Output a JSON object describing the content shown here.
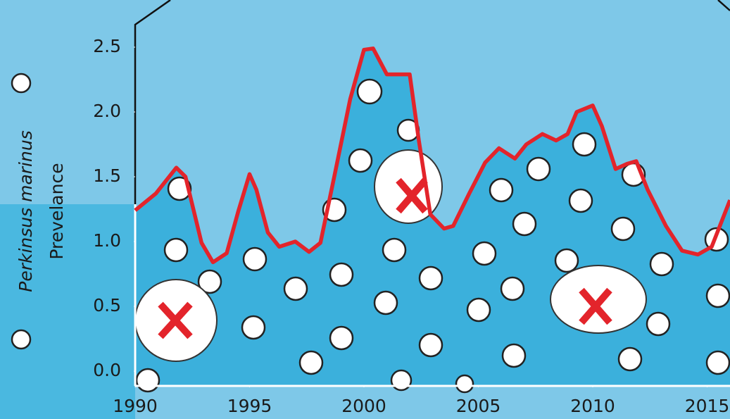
{
  "chart_data": {
    "type": "line",
    "y_label": "Prevelance",
    "y_label_species": "Perkinsus marinus",
    "x": [
      1990,
      1990.9,
      1991.8,
      1992.2,
      1992.9,
      1993.4,
      1994,
      1994.5,
      1995,
      1995.3,
      1995.8,
      1996.3,
      1997,
      1997.6,
      1998.1,
      1998.7,
      1999.4,
      2000,
      2000.4,
      2001,
      2001.5,
      2002,
      2002.4,
      2002.9,
      2003.5,
      2003.9,
      2004.6,
      2005.3,
      2005.9,
      2006.6,
      2007.1,
      2007.8,
      2008.4,
      2008.9,
      2009.3,
      2010,
      2010.4,
      2011,
      2011.5,
      2011.9,
      2012.4,
      2013.2,
      2013.9,
      2014.6,
      2015.2,
      2016
    ],
    "series": [
      {
        "color": "#e3242b",
        "values": [
          1.24,
          1.37,
          1.57,
          1.5,
          0.99,
          0.84,
          0.91,
          1.23,
          1.52,
          1.4,
          1.07,
          0.96,
          1.0,
          0.92,
          0.99,
          1.5,
          2.1,
          2.48,
          2.49,
          2.29,
          2.29,
          2.29,
          1.78,
          1.21,
          1.1,
          1.12,
          1.37,
          1.61,
          1.72,
          1.64,
          1.75,
          1.83,
          1.78,
          1.83,
          2.0,
          2.05,
          1.89,
          1.56,
          1.6,
          1.62,
          1.4,
          1.12,
          0.93,
          0.9,
          0.96,
          1.32
        ]
      }
    ],
    "area_color": "#3bb0dc",
    "xlim": [
      1990,
      2016
    ],
    "xticks": [
      1990,
      1995,
      2000,
      2005,
      2010,
      2015
    ],
    "ylim": [
      -0.114,
      2.864
    ],
    "yticks": [
      {
        "value": 0,
        "label": "0.0"
      },
      0.5,
      {
        "value": 1,
        "label": "1.0"
      },
      1.5,
      {
        "value": 2,
        "label": "2.0"
      },
      2.5
    ],
    "grid": false
  }
}
